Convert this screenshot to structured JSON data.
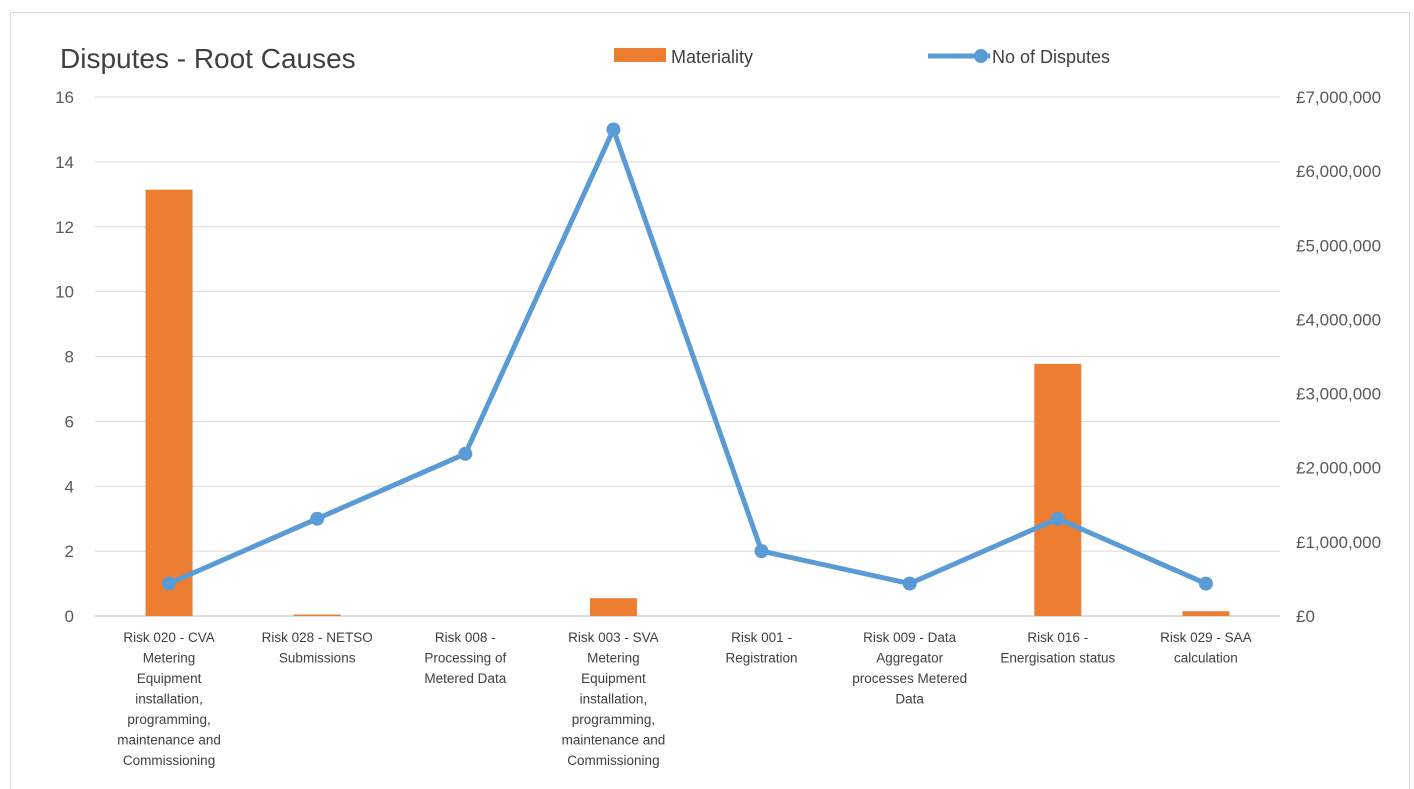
{
  "chart_data": {
    "type": "bar",
    "title": "Disputes - Root Causes",
    "categories": [
      "Risk 020 - CVA Metering Equipment installation, programming, maintenance and Commissioning",
      "Risk 028 - NETSO Submissions",
      "Risk 008 - Processing of Metered Data",
      "Risk 003 - SVA Metering Equipment installation, programming, maintenance and Commissioning",
      "Risk 001 - Registration",
      "Risk 009 - Data Aggregator processes Metered Data",
      "Risk 016 - Energisation status",
      "Risk 029 - SAA calculation"
    ],
    "category_lines": [
      [
        "Risk 020 - CVA",
        "Metering",
        "Equipment",
        "installation,",
        "programming,",
        "maintenance and",
        "Commissioning"
      ],
      [
        "Risk 028 - NETSO",
        "Submissions"
      ],
      [
        "Risk 008 -",
        "Processing of",
        "Metered Data"
      ],
      [
        "Risk 003 - SVA",
        "Metering",
        "Equipment",
        "installation,",
        "programming,",
        "maintenance and",
        "Commissioning"
      ],
      [
        "Risk 001 -",
        "Registration"
      ],
      [
        "Risk 009 - Data",
        "Aggregator",
        "processes Metered",
        "Data"
      ],
      [
        "Risk 016 -",
        "Energisation status"
      ],
      [
        "Risk 029 - SAA",
        "calculation"
      ]
    ],
    "series": [
      {
        "name": "Materiality",
        "type": "bar",
        "axis": "right",
        "color": "#ED7D31",
        "values": [
          5750000,
          20000,
          0,
          240000,
          0,
          0,
          3400000,
          65000
        ]
      },
      {
        "name": "No of Disputes",
        "type": "line",
        "axis": "left",
        "color": "#5B9BD5",
        "values": [
          1,
          3,
          5,
          15,
          2,
          1,
          3,
          1
        ]
      }
    ],
    "y_left": {
      "min": 0,
      "max": 16,
      "step": 2,
      "ticks": [
        "0",
        "2",
        "4",
        "6",
        "8",
        "10",
        "12",
        "14",
        "16"
      ]
    },
    "y_right": {
      "min": 0,
      "max": 7000000,
      "step": 1000000,
      "ticks": [
        "£0",
        "£1,000,000",
        "£2,000,000",
        "£3,000,000",
        "£4,000,000",
        "£5,000,000",
        "£6,000,000",
        "£7,000,000"
      ]
    },
    "grid": true,
    "legend": "top"
  }
}
